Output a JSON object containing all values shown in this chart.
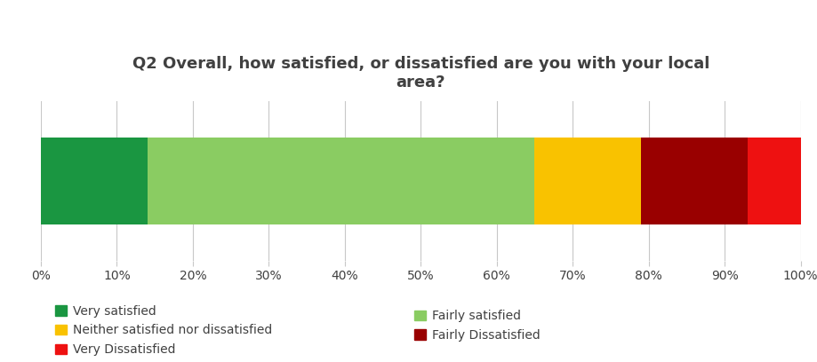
{
  "title": "Q2 Overall, how satisfied, or dissatisfied are you with your local\narea?",
  "title_fontsize": 13,
  "title_fontweight": "bold",
  "title_color": "#404040",
  "segments": [
    {
      "label": "Very satisfied",
      "value": 14,
      "color": "#1a9641"
    },
    {
      "label": "Fairly satisfied",
      "value": 51,
      "color": "#8acc62"
    },
    {
      "label": "Neither satisfied nor dissatisfied",
      "value": 14,
      "color": "#f9c200"
    },
    {
      "label": "Fairly Dissatisfied",
      "value": 14,
      "color": "#990000"
    },
    {
      "label": "Very Dissatisfied",
      "value": 7,
      "color": "#ee1111"
    }
  ],
  "xlim": [
    0,
    100
  ],
  "xticks": [
    0,
    10,
    20,
    30,
    40,
    50,
    60,
    70,
    80,
    90,
    100
  ],
  "xticklabels": [
    "0%",
    "10%",
    "20%",
    "30%",
    "40%",
    "50%",
    "60%",
    "70%",
    "80%",
    "90%",
    "100%"
  ],
  "background_color": "#ffffff",
  "grid_color": "#c8c8c8",
  "bar_height": 0.55,
  "legend_left_col": [
    {
      "label": "Very satisfied",
      "color": "#1a9641"
    },
    {
      "label": "Neither satisfied nor dissatisfied",
      "color": "#f9c200"
    },
    {
      "label": "Very Dissatisfied",
      "color": "#ee1111"
    }
  ],
  "legend_right_col": [
    {
      "label": "Fairly satisfied",
      "color": "#8acc62"
    },
    {
      "label": "Fairly Dissatisfied",
      "color": "#990000"
    }
  ]
}
